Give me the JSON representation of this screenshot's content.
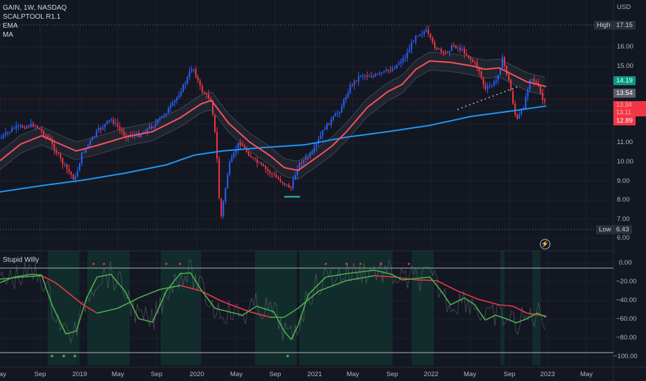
{
  "header": {
    "symbol": "GAIN, 1W, NASDAQ",
    "indicators": [
      "SCALPTOOL R1.1",
      "EMA",
      "MA"
    ],
    "currency": "USD"
  },
  "price_axis": {
    "ticks": [
      "16.00",
      "15.00",
      "12.00",
      "11.00",
      "10.00",
      "9.00",
      "8.00",
      "7.00",
      "6.00"
    ],
    "high_label": "High",
    "high_value": "17.15",
    "low_label": "Low",
    "low_value": "6.43",
    "tag_green": "14.19",
    "tag_gray": "13.54",
    "tag_red_top": "13.34",
    "tag_red_mid": "13.11",
    "tag_red": "12.89"
  },
  "osc_panel": {
    "title": "Stupid Willy",
    "ticks": [
      "0.00",
      "−20.00",
      "−40.00",
      "−60.00",
      "−80.00",
      "−100.00"
    ]
  },
  "time_axis": {
    "labels": [
      "May",
      "Sep",
      "2019",
      "May",
      "Sep",
      "2020",
      "May",
      "Sep",
      "2021",
      "May",
      "Sep",
      "2022",
      "May",
      "Sep",
      "2023",
      "May"
    ]
  },
  "colors": {
    "background": "#131722",
    "up": "#2962ff",
    "down": "#f23645",
    "ema": "#f7525f",
    "ma": "#2196f3",
    "osc_up": "#4caf50",
    "osc_down": "#f23645"
  }
}
